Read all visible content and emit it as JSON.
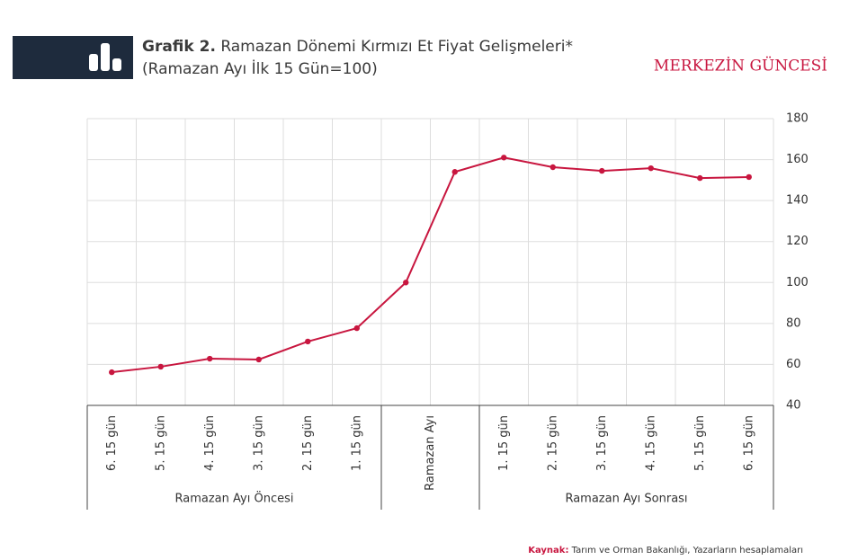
{
  "header": {
    "title_bold": "Grafik 2.",
    "title": "Ramazan Dönemi Kırmızı Et Fiyat Gelişmeleri*",
    "subtitle": "(Ramazan Ayı İlk 15 Gün=100)",
    "brand": "MERKEZİN GÜNCESİ"
  },
  "chart_data": {
    "type": "line",
    "categories": [
      "6. 15 gün",
      "5. 15 gün",
      "4. 15 gün",
      "3. 15 gün",
      "2. 15 gün",
      "1. 15 gün",
      null,
      null,
      "1. 15 gün",
      "2. 15 gün",
      "3. 15 gün",
      "4. 15 gün",
      "5. 15 gün",
      "6. 15 gün"
    ],
    "groups": [
      {
        "name": "Ramazan Ayı Öncesi",
        "size": 6
      },
      {
        "name": "Ramazan Ayı",
        "size": 2
      },
      {
        "name": "Ramazan Ayı Sonrası",
        "size": 6
      }
    ],
    "series": [
      {
        "name": "Kırmızı Et",
        "color": "#c8163f",
        "values": [
          56.2,
          58.9,
          62.8,
          62.4,
          71.2,
          77.7,
          100,
          154,
          161,
          156.3,
          154.5,
          155.8,
          151,
          151.5
        ]
      }
    ],
    "ylim": [
      40,
      180
    ],
    "yticks": [
      40,
      60,
      80,
      100,
      120,
      140,
      160,
      180
    ],
    "grid": true,
    "y_axis_side": "right"
  },
  "footer": {
    "source_label": "Kaynak:",
    "source": "Tarım ve Orman Bakanlığı, Yazarların hesaplamaları"
  }
}
